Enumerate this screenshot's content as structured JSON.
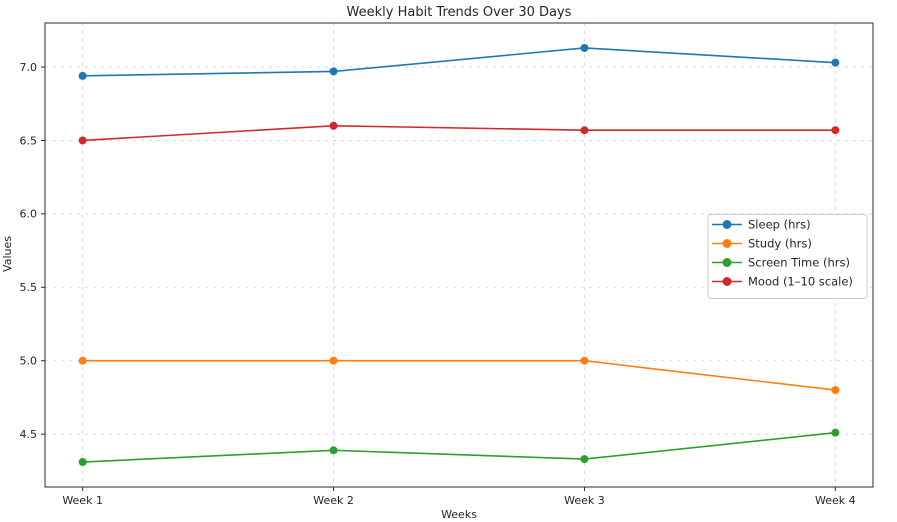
{
  "chart_data": {
    "type": "line",
    "title": "Weekly Habit Trends Over 30 Days",
    "xlabel": "Weeks",
    "ylabel": "Values",
    "categories": [
      "Week 1",
      "Week 2",
      "Week 3",
      "Week 4"
    ],
    "series": [
      {
        "name": "Sleep (hrs)",
        "color": "#1f77b4",
        "values": [
          6.94,
          6.97,
          7.13,
          7.03
        ]
      },
      {
        "name": "Study (hrs)",
        "color": "#ff7f0e",
        "values": [
          5.0,
          5.0,
          5.0,
          4.8
        ]
      },
      {
        "name": "Screen Time (hrs)",
        "color": "#2ca02c",
        "values": [
          4.31,
          4.39,
          4.33,
          4.51
        ]
      },
      {
        "name": "Mood (1–10 scale)",
        "color": "#d62728",
        "values": [
          6.5,
          6.6,
          6.57,
          6.57
        ]
      }
    ],
    "yticks": [
      4.5,
      5.0,
      5.5,
      6.0,
      6.5,
      7.0
    ],
    "ylim": [
      4.14,
      7.3
    ],
    "xlim": [
      -0.15,
      3.15
    ],
    "grid": true,
    "grid_style": "dashed",
    "legend_position": "center-right",
    "marker": "circle"
  },
  "styles": {
    "background": "#ffffff",
    "grid_color": "#d9d9d9",
    "spine_color": "#2b2b2b",
    "tick_color": "#2b2b2b",
    "text_color": "#262626",
    "legend_border": "#cccccc",
    "legend_background": "#ffffff"
  }
}
